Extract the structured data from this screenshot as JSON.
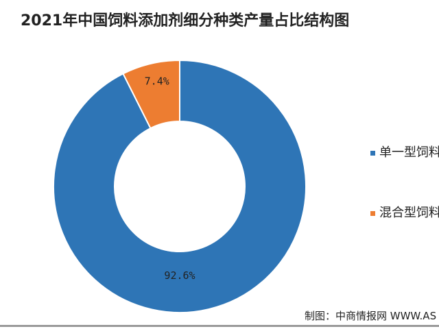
{
  "chart_data": {
    "type": "pie",
    "variant": "donut",
    "title": "2021年中国饲料添加剂细分种类产量占比结构图",
    "slices": [
      {
        "name": "单一型饲料",
        "value": 92.6,
        "label": "92.6%",
        "color": "#2e75b6"
      },
      {
        "name": "混合型饲料",
        "value": 7.4,
        "label": "7.4%",
        "color": "#ed7d31"
      }
    ],
    "legend_position": "right"
  },
  "source": "制图：中商情报网 WWW.AS"
}
